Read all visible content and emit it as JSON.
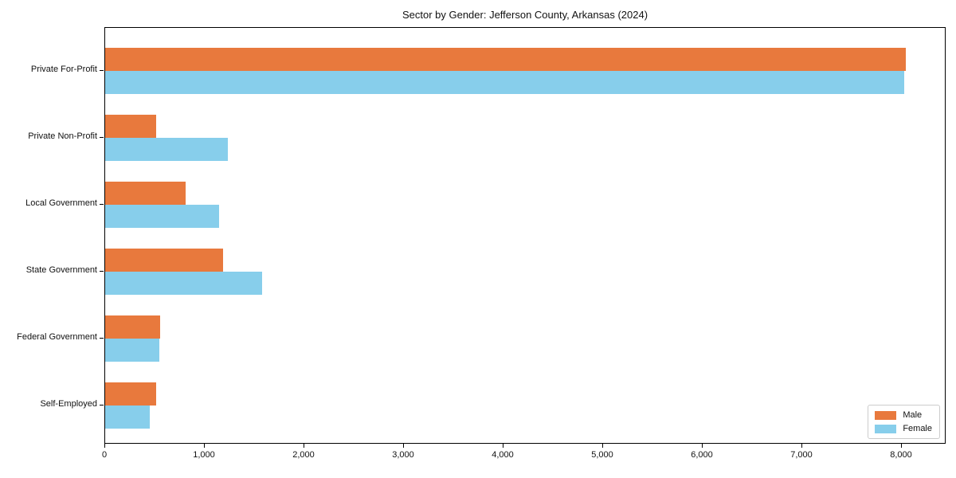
{
  "chart_data": {
    "type": "bar",
    "orientation": "horizontal",
    "title": "Sector by Gender: Jefferson County, Arkansas (2024)",
    "categories": [
      "Private For-Profit",
      "Private Non-Profit",
      "Local Government",
      "State Government",
      "Federal Government",
      "Self-Employed"
    ],
    "series": [
      {
        "name": "Male",
        "color": "#e8793d",
        "values": [
          8040,
          510,
          810,
          1180,
          550,
          510
        ]
      },
      {
        "name": "Female",
        "color": "#87ceeb",
        "values": [
          8020,
          1230,
          1140,
          1575,
          545,
          450
        ]
      }
    ],
    "xlabel": "",
    "ylabel": "",
    "xlim": [
      0,
      8448
    ],
    "x_ticks": [
      0,
      1000,
      2000,
      3000,
      4000,
      5000,
      6000,
      7000,
      8000
    ],
    "x_tick_labels": [
      "0",
      "1,000",
      "2,000",
      "3,000",
      "4,000",
      "5,000",
      "6,000",
      "7,000",
      "8,000"
    ],
    "grid": false,
    "legend": {
      "position": "lower right"
    }
  }
}
